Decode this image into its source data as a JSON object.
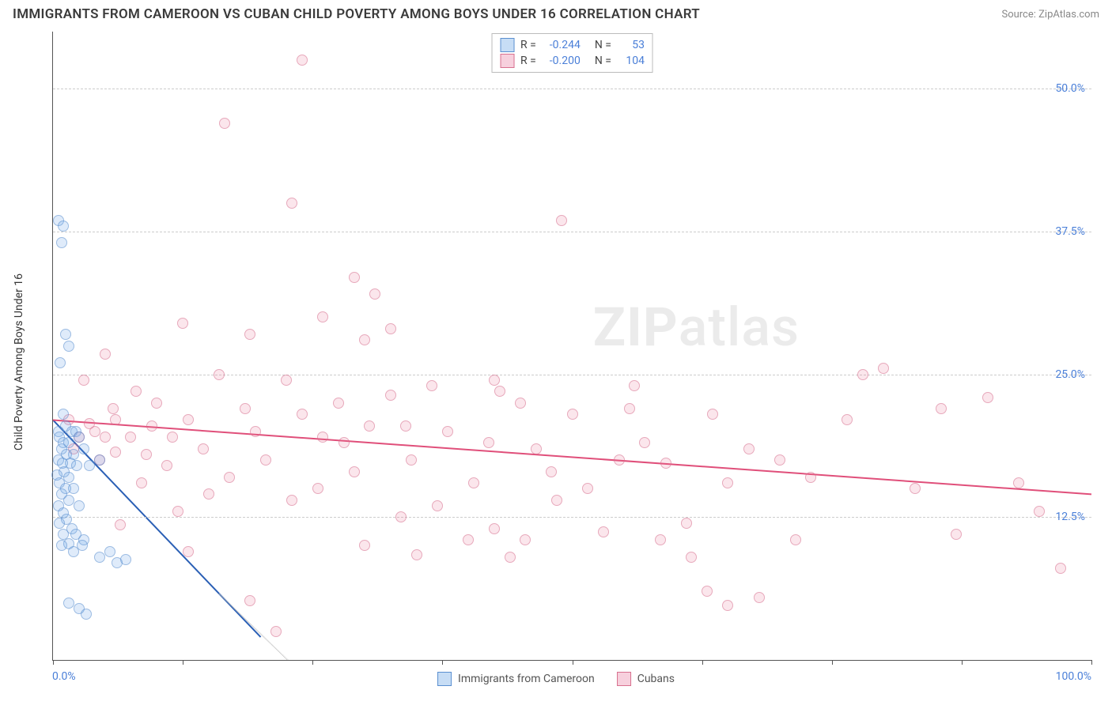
{
  "title": "IMMIGRANTS FROM CAMEROON VS CUBAN CHILD POVERTY AMONG BOYS UNDER 16 CORRELATION CHART",
  "source": "Source: ZipAtlas.com",
  "ylabel": "Child Poverty Among Boys Under 16",
  "watermark_prefix": "ZIP",
  "watermark_suffix": "atlas",
  "chart": {
    "type": "scatter",
    "xlim": [
      0,
      100
    ],
    "ylim": [
      0,
      55
    ],
    "x_ticks": [
      0,
      12.5,
      25,
      37.5,
      50,
      62.5,
      75,
      87.5,
      100
    ],
    "x_tick_labels": {
      "0": "0.0%",
      "100": "100.0%"
    },
    "y_gridlines": [
      12.5,
      25,
      37.5,
      50
    ],
    "y_tick_labels": {
      "12.5": "12.5%",
      "25": "25.0%",
      "37.5": "37.5%",
      "50": "50.0%"
    },
    "grid_color": "#cccccc",
    "axis_color": "#555555",
    "background_color": "#ffffff",
    "tick_label_color": "#4a7fd8",
    "series": [
      {
        "id": "cameroon",
        "label": "Immigrants from Cameroon",
        "fill": "rgba(100,160,230,0.35)",
        "stroke": "#5a8fd0",
        "swatch_fill": "#c7ddf5",
        "swatch_stroke": "#5a8fd0",
        "R": "-0.244",
        "N": "53",
        "trend": {
          "x1": 0,
          "y1": 21,
          "x2": 20,
          "y2": 2,
          "color": "#2a5fb5",
          "width": 2,
          "dash_x1": 16,
          "dash_y1": 5.8,
          "dash_x2": 26,
          "dash_y2": -3,
          "dash_color": "#bbbbbb"
        },
        "points": [
          [
            0.5,
            38.5
          ],
          [
            1,
            38
          ],
          [
            0.8,
            36.5
          ],
          [
            1.2,
            28.5
          ],
          [
            1.5,
            27.5
          ],
          [
            0.7,
            26
          ],
          [
            1,
            21.5
          ],
          [
            1.2,
            20.5
          ],
          [
            0.5,
            20
          ],
          [
            1.8,
            20
          ],
          [
            2.2,
            20
          ],
          [
            0.6,
            19.5
          ],
          [
            1,
            19
          ],
          [
            1.5,
            19
          ],
          [
            2.5,
            19.5
          ],
          [
            0.8,
            18.5
          ],
          [
            1.3,
            18
          ],
          [
            2,
            18
          ],
          [
            0.5,
            17.5
          ],
          [
            1.7,
            17.2
          ],
          [
            0.9,
            17.2
          ],
          [
            1.1,
            16.5
          ],
          [
            2.3,
            17
          ],
          [
            0.4,
            16.2
          ],
          [
            1.5,
            16
          ],
          [
            3,
            18.5
          ],
          [
            3.5,
            17
          ],
          [
            4.5,
            17.5
          ],
          [
            0.6,
            15.5
          ],
          [
            1.2,
            15
          ],
          [
            2,
            15
          ],
          [
            0.8,
            14.5
          ],
          [
            1.5,
            14
          ],
          [
            0.5,
            13.5
          ],
          [
            1,
            12.9
          ],
          [
            2.5,
            13.5
          ],
          [
            1.3,
            12.3
          ],
          [
            0.6,
            12
          ],
          [
            1.8,
            11.5
          ],
          [
            1,
            11
          ],
          [
            2.2,
            11
          ],
          [
            3,
            10.5
          ],
          [
            1.5,
            10.2
          ],
          [
            0.8,
            10
          ],
          [
            2.8,
            10
          ],
          [
            2,
            9.5
          ],
          [
            4.5,
            9
          ],
          [
            5.5,
            9.5
          ],
          [
            6.2,
            8.5
          ],
          [
            7,
            8.8
          ],
          [
            1.5,
            5
          ],
          [
            2.5,
            4.5
          ],
          [
            3.2,
            4
          ]
        ]
      },
      {
        "id": "cubans",
        "label": "Cubans",
        "fill": "rgba(235,120,150,0.30)",
        "stroke": "#d8708f",
        "swatch_fill": "#f7d0dd",
        "swatch_stroke": "#d8708f",
        "R": "-0.200",
        "N": "104",
        "trend": {
          "x1": 0,
          "y1": 21,
          "x2": 100,
          "y2": 14.5,
          "color": "#e04f7a",
          "width": 2
        },
        "points": [
          [
            24,
            52.5
          ],
          [
            16.5,
            47
          ],
          [
            49,
            38.5
          ],
          [
            23,
            40
          ],
          [
            29,
            33.5
          ],
          [
            31,
            32
          ],
          [
            30,
            28
          ],
          [
            32.5,
            29
          ],
          [
            26,
            30
          ],
          [
            12.5,
            29.5
          ],
          [
            5,
            26.8
          ],
          [
            5.8,
            22
          ],
          [
            3,
            24.5
          ],
          [
            8,
            23.5
          ],
          [
            10,
            22.5
          ],
          [
            6,
            21
          ],
          [
            4,
            20
          ],
          [
            9.5,
            20.5
          ],
          [
            11.5,
            19.5
          ],
          [
            13,
            21
          ],
          [
            16,
            25
          ],
          [
            18.5,
            22
          ],
          [
            19.5,
            20
          ],
          [
            22.5,
            24.5
          ],
          [
            24,
            21.5
          ],
          [
            26,
            19.5
          ],
          [
            27.5,
            22.5
          ],
          [
            29,
            16.5
          ],
          [
            30.5,
            20.5
          ],
          [
            32.5,
            23.2
          ],
          [
            34.5,
            17.5
          ],
          [
            36.5,
            24
          ],
          [
            38,
            20
          ],
          [
            40.5,
            15.5
          ],
          [
            42,
            19
          ],
          [
            42.5,
            24.5
          ],
          [
            43,
            23.5
          ],
          [
            45,
            22.5
          ],
          [
            46.5,
            18.5
          ],
          [
            48,
            16.5
          ],
          [
            50,
            21.5
          ],
          [
            51.5,
            15
          ],
          [
            54.5,
            17.5
          ],
          [
            56,
            24.0
          ],
          [
            57,
            19
          ],
          [
            59,
            17.2
          ],
          [
            61,
            12
          ],
          [
            63.5,
            21.5
          ],
          [
            65,
            15.5
          ],
          [
            67,
            18.5
          ],
          [
            70,
            17.5
          ],
          [
            73,
            16
          ],
          [
            76.5,
            21
          ],
          [
            78,
            25
          ],
          [
            80,
            25.5
          ],
          [
            83,
            15
          ],
          [
            85.5,
            22
          ],
          [
            87,
            11
          ],
          [
            90,
            23
          ],
          [
            93,
            15.5
          ],
          [
            95,
            13
          ],
          [
            97,
            8
          ],
          [
            68,
            5.5
          ],
          [
            65,
            4.8
          ],
          [
            44,
            9
          ],
          [
            42.5,
            11.5
          ],
          [
            45.5,
            10.5
          ],
          [
            35,
            9.2
          ],
          [
            30,
            10
          ],
          [
            33.5,
            12.5
          ],
          [
            19,
            5.2
          ],
          [
            21.5,
            2.5
          ],
          [
            12,
            13
          ],
          [
            13,
            9.5
          ],
          [
            6.5,
            11.8
          ],
          [
            8.5,
            15.5
          ],
          [
            11,
            17
          ],
          [
            14.5,
            18.5
          ],
          [
            17,
            16
          ],
          [
            20.5,
            17.5
          ],
          [
            23,
            14
          ],
          [
            25.5,
            15
          ],
          [
            28,
            19
          ],
          [
            6,
            18.2
          ],
          [
            3.5,
            20.7
          ],
          [
            2.5,
            19.5
          ],
          [
            4.5,
            17.5
          ],
          [
            7.5,
            19.5
          ],
          [
            9,
            18
          ],
          [
            15,
            14.5
          ],
          [
            53,
            11.2
          ],
          [
            58.5,
            10.5
          ],
          [
            61.5,
            9
          ],
          [
            19,
            28.5
          ],
          [
            34,
            20.5
          ],
          [
            37,
            13.5
          ],
          [
            48.5,
            14
          ],
          [
            55.5,
            22
          ],
          [
            71.5,
            10.5
          ],
          [
            63,
            6
          ],
          [
            40,
            10.5
          ],
          [
            5,
            19.5
          ],
          [
            1.5,
            21
          ],
          [
            2,
            18.5
          ]
        ]
      }
    ]
  },
  "stats_labels": {
    "R": "R =",
    "N": "N ="
  }
}
